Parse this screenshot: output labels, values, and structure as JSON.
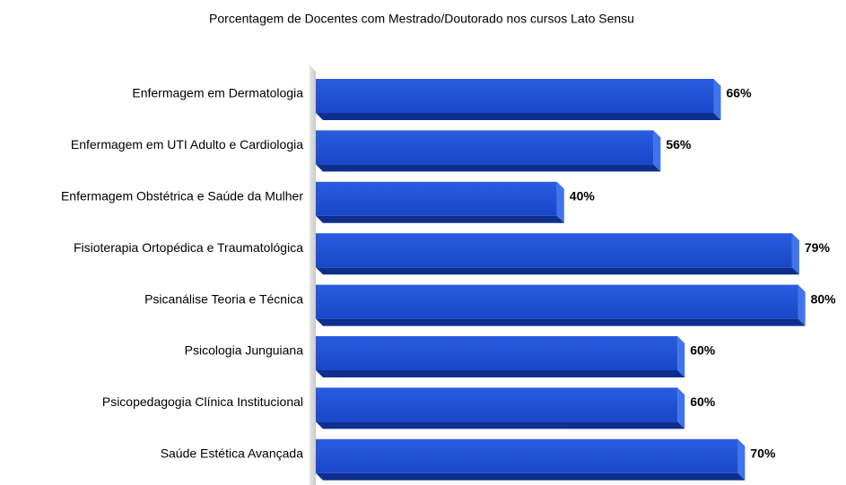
{
  "chart_data": {
    "type": "bar",
    "orientation": "horizontal",
    "title": "Porcentagem de Docentes com Mestrado/Doutorado nos cursos Lato Sensu",
    "categories": [
      "Enfermagem em Dermatologia",
      "Enfermagem em UTI Adulto e Cardiologia",
      "Enfermagem Obstétrica e Saúde da Mulher",
      "Fisioterapia Ortopédica e Traumatológica",
      "Psicanálise Teoria e Técnica",
      "Psicologia Junguiana",
      "Psicopedagogia Clínica Institucional",
      "Saúde Estética Avançada"
    ],
    "values": [
      66,
      56,
      40,
      79,
      80,
      60,
      60,
      70
    ],
    "value_labels": [
      "66%",
      "56%",
      "40%",
      "79%",
      "80%",
      "60%",
      "60%",
      "70%"
    ],
    "color": "#1f4fd6"
  }
}
